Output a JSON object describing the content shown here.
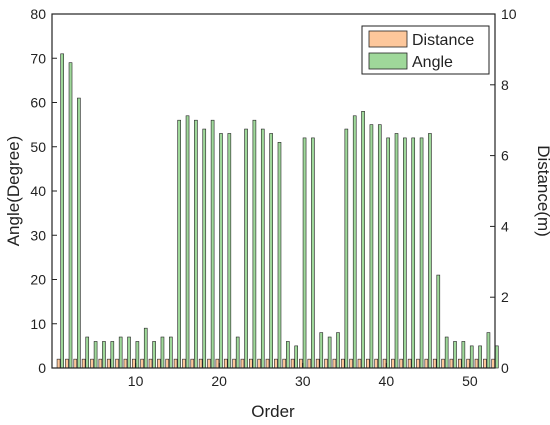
{
  "chart_data": {
    "type": "bar",
    "xlabel": "Order",
    "ylabel_left": "Angle(Degree)",
    "ylabel_right": "Distance(m)",
    "xlim": [
      0,
      53
    ],
    "ylim_left": [
      0,
      80
    ],
    "ylim_right": [
      0,
      10
    ],
    "xticks": [
      10,
      20,
      30,
      40,
      50
    ],
    "yticks_left": [
      0,
      10,
      20,
      30,
      40,
      50,
      60,
      70,
      80
    ],
    "yticks_right": [
      0,
      2,
      4,
      6,
      8,
      10
    ],
    "legend_position": "top-right",
    "grid": false,
    "x": [
      1,
      2,
      3,
      4,
      5,
      6,
      7,
      8,
      9,
      10,
      11,
      12,
      13,
      14,
      15,
      16,
      17,
      18,
      19,
      20,
      21,
      22,
      23,
      24,
      25,
      26,
      27,
      28,
      29,
      30,
      31,
      32,
      33,
      34,
      35,
      36,
      37,
      38,
      39,
      40,
      41,
      42,
      43,
      44,
      45,
      46,
      47,
      48,
      49,
      50,
      51,
      52,
      53
    ],
    "series": [
      {
        "name": "Distance",
        "axis": "right",
        "color": "#fdc79b",
        "values": [
          0.25,
          0.25,
          0.25,
          0.25,
          0.25,
          0.25,
          0.25,
          0.25,
          0.25,
          0.25,
          0.25,
          0.25,
          0.25,
          0.25,
          0.25,
          0.25,
          0.25,
          0.25,
          0.25,
          0.25,
          0.25,
          0.25,
          0.25,
          0.25,
          0.25,
          0.25,
          0.25,
          0.25,
          0.25,
          0.25,
          0.25,
          0.25,
          0.25,
          0.25,
          0.25,
          0.25,
          0.25,
          0.25,
          0.25,
          0.25,
          0.25,
          0.25,
          0.25,
          0.25,
          0.25,
          0.25,
          0.25,
          0.25,
          0.25,
          0.25,
          0.25,
          0.25,
          0.25
        ]
      },
      {
        "name": "Angle",
        "axis": "left",
        "color": "#9fd89a",
        "values": [
          71,
          69,
          61,
          7,
          6,
          6,
          6,
          7,
          7,
          6,
          9,
          6,
          7,
          7,
          56,
          57,
          56,
          54,
          56,
          53,
          53,
          7,
          54,
          56,
          54,
          53,
          51,
          6,
          5,
          52,
          52,
          8,
          7,
          8,
          54,
          57,
          58,
          55,
          55,
          52,
          53,
          52,
          52,
          52,
          53,
          21,
          7,
          6,
          6,
          5,
          5,
          8,
          5
        ]
      }
    ]
  }
}
